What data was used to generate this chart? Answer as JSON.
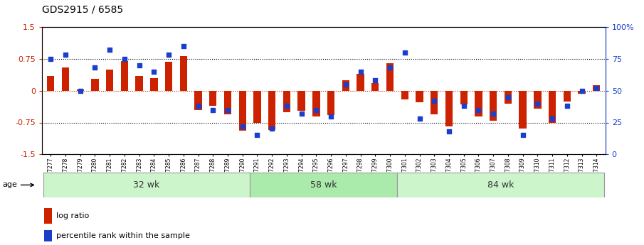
{
  "title": "GDS2915 / 6585",
  "samples": [
    "GSM97277",
    "GSM97278",
    "GSM97279",
    "GSM97280",
    "GSM97281",
    "GSM97282",
    "GSM97283",
    "GSM97284",
    "GSM97285",
    "GSM97286",
    "GSM97287",
    "GSM97288",
    "GSM97289",
    "GSM97290",
    "GSM97291",
    "GSM97292",
    "GSM97293",
    "GSM97294",
    "GSM97295",
    "GSM97296",
    "GSM97297",
    "GSM97298",
    "GSM97299",
    "GSM97300",
    "GSM97301",
    "GSM97302",
    "GSM97303",
    "GSM97304",
    "GSM97305",
    "GSM97306",
    "GSM97307",
    "GSM97308",
    "GSM97309",
    "GSM97310",
    "GSM97311",
    "GSM97312",
    "GSM97313",
    "GSM97314"
  ],
  "log_ratio": [
    0.35,
    0.55,
    0.02,
    0.28,
    0.5,
    0.7,
    0.35,
    0.3,
    0.68,
    0.82,
    -0.45,
    -0.35,
    -0.55,
    -0.95,
    -0.75,
    -0.92,
    -0.5,
    -0.48,
    -0.6,
    -0.58,
    0.25,
    0.4,
    0.18,
    0.65,
    -0.2,
    -0.28,
    -0.55,
    -0.85,
    -0.32,
    -0.6,
    -0.7,
    -0.3,
    -0.9,
    -0.42,
    -0.75,
    -0.25,
    -0.08,
    0.12
  ],
  "percentile_rank": [
    75,
    78,
    50,
    68,
    82,
    75,
    70,
    65,
    78,
    85,
    38,
    35,
    35,
    22,
    15,
    20,
    38,
    32,
    35,
    30,
    55,
    65,
    58,
    68,
    80,
    28,
    42,
    18,
    38,
    35,
    32,
    45,
    15,
    40,
    28,
    38,
    50,
    52
  ],
  "groups": [
    {
      "label": "32 wk",
      "start": 0,
      "end": 14
    },
    {
      "label": "58 wk",
      "start": 14,
      "end": 24
    },
    {
      "label": "84 wk",
      "start": 24,
      "end": 38
    }
  ],
  "bar_color": "#cc2200",
  "dot_color": "#1a3fcc",
  "ylim_left": [
    -1.5,
    1.5
  ],
  "ylim_right": [
    0,
    100
  ],
  "yticks_left": [
    -1.5,
    -0.75,
    0,
    0.75,
    1.5
  ],
  "yticks_right": [
    0,
    25,
    50,
    75,
    100
  ],
  "hlines": [
    -0.75,
    0.0,
    0.75
  ],
  "group_colors": [
    "#ccf5cc",
    "#aaeaaa",
    "#ccf5cc"
  ],
  "age_label": "age",
  "legend_bar_label": "log ratio",
  "legend_dot_label": "percentile rank within the sample"
}
